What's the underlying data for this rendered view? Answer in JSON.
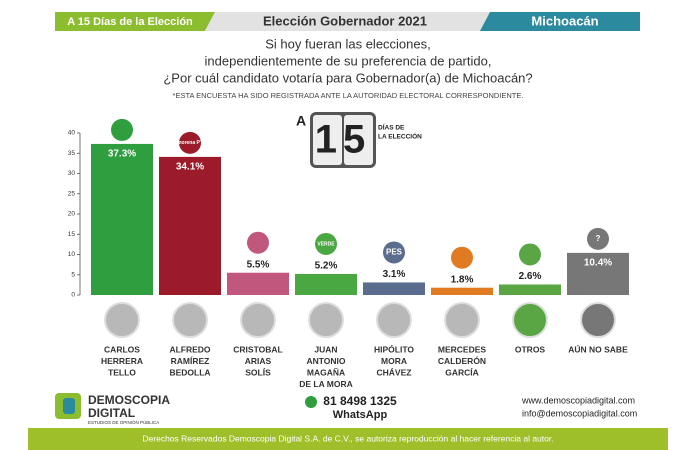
{
  "header": {
    "left": "A 15 Días de la Elección",
    "title": "Elección Gobernador 2021",
    "right": "Michoacán"
  },
  "question": [
    "Si hoy fueran las elecciones,",
    "independientemente de su preferencia de partido,",
    "¿Por cuál candidato votaría para Gobernador(a) de Michoacán?"
  ],
  "note": "*ESTA ENCUESTA HA SIDO REGISTRADA ANTE LA AUTORIDAD ELECTORAL CORRESPONDIENTE.",
  "countdown": {
    "prefix": "A",
    "number": "15",
    "caption": [
      "DÍAS DE",
      "LA ELECCIÓN"
    ]
  },
  "chart_data": {
    "type": "bar",
    "categories": [
      [
        "CARLOS",
        "HERRERA",
        "TELLO"
      ],
      [
        "ALFREDO",
        "RAMÍREZ",
        "BEDOLLA"
      ],
      [
        "CRISTOBAL",
        "ARIAS",
        "SOLÍS"
      ],
      [
        "JUAN",
        "ANTONIO",
        "MAGAÑA",
        "DE LA MORA"
      ],
      [
        "HIPÓLITO",
        "MORA",
        "CHÁVEZ"
      ],
      [
        "MERCEDES",
        "CALDERÓN",
        "GARCÍA"
      ],
      [
        "OTROS"
      ],
      [
        "AÚN NO SABE"
      ]
    ],
    "values": [
      37.3,
      34.1,
      5.5,
      5.2,
      3.1,
      1.8,
      2.6,
      10.4
    ],
    "value_labels": [
      "37.3%",
      "34.1%",
      "5.5%",
      "5.2%",
      "3.1%",
      "1.8%",
      "2.6%",
      "10.4%"
    ],
    "colors": [
      "#2e9e3e",
      "#9b1b2a",
      "#c0587e",
      "#4aa842",
      "#5b6d8f",
      "#e07b22",
      "#5aa544",
      "#777777"
    ],
    "logos": [
      "",
      "morena PT",
      "",
      "VERDE",
      "PES",
      "",
      "",
      "?"
    ],
    "ylim": [
      0,
      40
    ],
    "yticks": [
      0,
      5,
      10,
      15,
      20,
      25,
      30,
      35,
      40
    ]
  },
  "footer": {
    "brand": [
      "DEMOSCOPIA",
      "DIGITAL"
    ],
    "tagline": "ESTUDIOS DE OPINIÓN PÚBLICA",
    "phone": "81 8498 1325",
    "phone_caption": "WhatsApp",
    "website": "www.demoscopiadigital.com",
    "email": "info@demoscopiadigital.com",
    "copyright": "Derechos Reservados Demoscopia Digital S.A. de C.V., se autoriza reproducción al hacer referencia al autor."
  }
}
